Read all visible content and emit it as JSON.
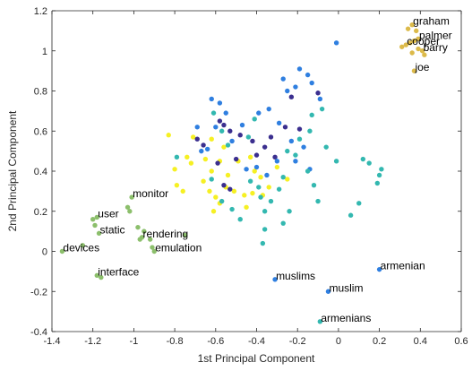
{
  "chart_data": {
    "type": "scatter",
    "title": "",
    "xlabel": "1st Principal Component",
    "ylabel": "2nd Principal Component",
    "xlim": [
      -1.4,
      0.6
    ],
    "ylim": [
      -0.4,
      1.2
    ],
    "xticks": [
      "-1.4",
      "-1.2",
      "-1",
      "-0.8",
      "-0.6",
      "-0.4",
      "-0.2",
      "0",
      "0.2",
      "0.4",
      "0.6"
    ],
    "yticks": [
      "-0.4",
      "-0.2",
      "0",
      "0.2",
      "0.4",
      "0.6",
      "0.8",
      "1",
      "1.2"
    ],
    "grid": false,
    "legend": "none",
    "colors": {
      "green": "#8cbf6c",
      "gold": "#dcba4a",
      "yellow": "#f6f023",
      "navy": "#3b2f8f",
      "blue": "#2f7fe0",
      "teal": "#33b8b0",
      "axis": "#262626"
    },
    "labeled_points": [
      {
        "x": 0.36,
        "y": 1.13,
        "color": "gold",
        "label": "graham"
      },
      {
        "x": 0.39,
        "y": 1.06,
        "color": "gold",
        "label": "palmer"
      },
      {
        "x": 0.33,
        "y": 1.03,
        "color": "gold",
        "label": "cooper"
      },
      {
        "x": 0.41,
        "y": 1.0,
        "color": "gold",
        "label": "barry"
      },
      {
        "x": 0.37,
        "y": 0.9,
        "color": "gold",
        "label": "joe"
      },
      {
        "x": -1.01,
        "y": 0.27,
        "color": "green",
        "label": "monitor"
      },
      {
        "x": -1.18,
        "y": 0.17,
        "color": "green",
        "label": "user"
      },
      {
        "x": -1.17,
        "y": 0.09,
        "color": "green",
        "label": "static"
      },
      {
        "x": -0.96,
        "y": 0.07,
        "color": "green",
        "label": "rendering"
      },
      {
        "x": -1.35,
        "y": 0.0,
        "color": "green",
        "label": "devices"
      },
      {
        "x": -0.9,
        "y": 0.0,
        "color": "green",
        "label": "emulation"
      },
      {
        "x": -1.18,
        "y": -0.12,
        "color": "green",
        "label": "interface"
      },
      {
        "x": -0.31,
        "y": -0.14,
        "color": "blue",
        "label": "muslims"
      },
      {
        "x": -0.05,
        "y": -0.2,
        "color": "blue",
        "label": "muslim"
      },
      {
        "x": 0.2,
        "y": -0.09,
        "color": "blue",
        "label": "armenian"
      },
      {
        "x": -0.09,
        "y": -0.35,
        "color": "teal",
        "label": "armenians"
      }
    ],
    "points": [
      {
        "x": 0.34,
        "y": 1.11,
        "color": "gold"
      },
      {
        "x": 0.38,
        "y": 1.1,
        "color": "gold"
      },
      {
        "x": 0.37,
        "y": 1.05,
        "color": "gold"
      },
      {
        "x": 0.31,
        "y": 1.02,
        "color": "gold"
      },
      {
        "x": 0.39,
        "y": 1.01,
        "color": "gold"
      },
      {
        "x": 0.36,
        "y": 0.99,
        "color": "gold"
      },
      {
        "x": 0.42,
        "y": 0.98,
        "color": "gold"
      },
      {
        "x": 0.35,
        "y": 1.04,
        "color": "gold"
      },
      {
        "x": -1.25,
        "y": 0.03,
        "color": "green"
      },
      {
        "x": -1.2,
        "y": 0.16,
        "color": "green"
      },
      {
        "x": -1.19,
        "y": 0.13,
        "color": "green"
      },
      {
        "x": -1.03,
        "y": 0.22,
        "color": "green"
      },
      {
        "x": -1.02,
        "y": 0.2,
        "color": "green"
      },
      {
        "x": -0.98,
        "y": 0.12,
        "color": "green"
      },
      {
        "x": -0.95,
        "y": 0.1,
        "color": "green"
      },
      {
        "x": -0.92,
        "y": 0.06,
        "color": "green"
      },
      {
        "x": -0.97,
        "y": 0.06,
        "color": "green"
      },
      {
        "x": -0.91,
        "y": 0.02,
        "color": "green"
      },
      {
        "x": -0.75,
        "y": 0.08,
        "color": "green"
      },
      {
        "x": -1.16,
        "y": -0.13,
        "color": "green"
      },
      {
        "x": -0.79,
        "y": 0.47,
        "color": "teal"
      },
      {
        "x": -0.72,
        "y": 0.44,
        "color": "yellow"
      },
      {
        "x": -0.83,
        "y": 0.58,
        "color": "yellow"
      },
      {
        "x": -0.8,
        "y": 0.41,
        "color": "yellow"
      },
      {
        "x": -0.79,
        "y": 0.33,
        "color": "yellow"
      },
      {
        "x": -0.76,
        "y": 0.3,
        "color": "yellow"
      },
      {
        "x": -0.71,
        "y": 0.57,
        "color": "yellow"
      },
      {
        "x": -0.74,
        "y": 0.47,
        "color": "yellow"
      },
      {
        "x": -0.65,
        "y": 0.46,
        "color": "yellow"
      },
      {
        "x": -0.62,
        "y": 0.4,
        "color": "yellow"
      },
      {
        "x": -0.6,
        "y": 0.27,
        "color": "yellow"
      },
      {
        "x": -0.61,
        "y": 0.2,
        "color": "yellow"
      },
      {
        "x": -0.58,
        "y": 0.24,
        "color": "yellow"
      },
      {
        "x": -0.55,
        "y": 0.32,
        "color": "yellow"
      },
      {
        "x": -0.51,
        "y": 0.3,
        "color": "yellow"
      },
      {
        "x": -0.58,
        "y": 0.45,
        "color": "yellow"
      },
      {
        "x": -0.54,
        "y": 0.38,
        "color": "yellow"
      },
      {
        "x": -0.49,
        "y": 0.45,
        "color": "yellow"
      },
      {
        "x": -0.46,
        "y": 0.28,
        "color": "yellow"
      },
      {
        "x": -0.45,
        "y": 0.22,
        "color": "yellow"
      },
      {
        "x": -0.42,
        "y": 0.29,
        "color": "yellow"
      },
      {
        "x": -0.38,
        "y": 0.37,
        "color": "yellow"
      },
      {
        "x": -0.37,
        "y": 0.28,
        "color": "yellow"
      },
      {
        "x": -0.34,
        "y": 0.32,
        "color": "yellow"
      },
      {
        "x": -0.41,
        "y": 0.4,
        "color": "yellow"
      },
      {
        "x": -0.43,
        "y": 0.47,
        "color": "yellow"
      },
      {
        "x": -0.62,
        "y": 0.56,
        "color": "yellow"
      },
      {
        "x": -0.56,
        "y": 0.52,
        "color": "yellow"
      },
      {
        "x": -0.66,
        "y": 0.35,
        "color": "yellow"
      },
      {
        "x": -0.3,
        "y": 0.42,
        "color": "yellow"
      },
      {
        "x": -0.25,
        "y": 0.36,
        "color": "yellow"
      },
      {
        "x": -0.63,
        "y": 0.3,
        "color": "yellow"
      },
      {
        "x": -0.69,
        "y": 0.56,
        "color": "navy"
      },
      {
        "x": -0.66,
        "y": 0.53,
        "color": "navy"
      },
      {
        "x": -0.58,
        "y": 0.65,
        "color": "navy"
      },
      {
        "x": -0.56,
        "y": 0.63,
        "color": "navy"
      },
      {
        "x": -0.53,
        "y": 0.6,
        "color": "navy"
      },
      {
        "x": -0.48,
        "y": 0.58,
        "color": "navy"
      },
      {
        "x": -0.5,
        "y": 0.46,
        "color": "navy"
      },
      {
        "x": -0.53,
        "y": 0.31,
        "color": "navy"
      },
      {
        "x": -0.56,
        "y": 0.33,
        "color": "navy"
      },
      {
        "x": -0.42,
        "y": 0.55,
        "color": "navy"
      },
      {
        "x": -0.4,
        "y": 0.48,
        "color": "navy"
      },
      {
        "x": -0.36,
        "y": 0.52,
        "color": "navy"
      },
      {
        "x": -0.33,
        "y": 0.57,
        "color": "navy"
      },
      {
        "x": -0.31,
        "y": 0.47,
        "color": "navy"
      },
      {
        "x": -0.1,
        "y": 0.79,
        "color": "navy"
      },
      {
        "x": -0.26,
        "y": 0.62,
        "color": "navy"
      },
      {
        "x": -0.23,
        "y": 0.77,
        "color": "navy"
      },
      {
        "x": -0.19,
        "y": 0.61,
        "color": "navy"
      },
      {
        "x": -0.59,
        "y": 0.44,
        "color": "navy"
      },
      {
        "x": -0.01,
        "y": 1.04,
        "color": "blue"
      },
      {
        "x": -0.19,
        "y": 0.91,
        "color": "blue"
      },
      {
        "x": -0.15,
        "y": 0.88,
        "color": "blue"
      },
      {
        "x": -0.27,
        "y": 0.86,
        "color": "blue"
      },
      {
        "x": -0.21,
        "y": 0.82,
        "color": "blue"
      },
      {
        "x": -0.25,
        "y": 0.8,
        "color": "blue"
      },
      {
        "x": -0.13,
        "y": 0.84,
        "color": "blue"
      },
      {
        "x": -0.09,
        "y": 0.76,
        "color": "blue"
      },
      {
        "x": -0.62,
        "y": 0.76,
        "color": "blue"
      },
      {
        "x": -0.58,
        "y": 0.74,
        "color": "blue"
      },
      {
        "x": -0.55,
        "y": 0.69,
        "color": "blue"
      },
      {
        "x": -0.6,
        "y": 0.62,
        "color": "blue"
      },
      {
        "x": -0.52,
        "y": 0.55,
        "color": "blue"
      },
      {
        "x": -0.47,
        "y": 0.63,
        "color": "blue"
      },
      {
        "x": -0.39,
        "y": 0.69,
        "color": "blue"
      },
      {
        "x": -0.34,
        "y": 0.71,
        "color": "blue"
      },
      {
        "x": -0.29,
        "y": 0.64,
        "color": "blue"
      },
      {
        "x": -0.45,
        "y": 0.41,
        "color": "blue"
      },
      {
        "x": -0.4,
        "y": 0.42,
        "color": "blue"
      },
      {
        "x": -0.35,
        "y": 0.38,
        "color": "blue"
      },
      {
        "x": -0.3,
        "y": 0.45,
        "color": "blue"
      },
      {
        "x": -0.23,
        "y": 0.55,
        "color": "blue"
      },
      {
        "x": -0.17,
        "y": 0.52,
        "color": "blue"
      },
      {
        "x": -0.21,
        "y": 0.45,
        "color": "blue"
      },
      {
        "x": -0.14,
        "y": 0.41,
        "color": "blue"
      },
      {
        "x": -0.64,
        "y": 0.51,
        "color": "blue"
      },
      {
        "x": -0.67,
        "y": 0.5,
        "color": "blue"
      },
      {
        "x": -0.69,
        "y": 0.62,
        "color": "blue"
      },
      {
        "x": -0.41,
        "y": 0.66,
        "color": "teal"
      },
      {
        "x": -0.44,
        "y": 0.57,
        "color": "teal"
      },
      {
        "x": -0.61,
        "y": 0.69,
        "color": "teal"
      },
      {
        "x": -0.57,
        "y": 0.6,
        "color": "teal"
      },
      {
        "x": -0.54,
        "y": 0.53,
        "color": "teal"
      },
      {
        "x": -0.62,
        "y": 0.36,
        "color": "teal"
      },
      {
        "x": -0.57,
        "y": 0.25,
        "color": "teal"
      },
      {
        "x": -0.52,
        "y": 0.21,
        "color": "teal"
      },
      {
        "x": -0.48,
        "y": 0.16,
        "color": "teal"
      },
      {
        "x": -0.43,
        "y": 0.35,
        "color": "teal"
      },
      {
        "x": -0.39,
        "y": 0.32,
        "color": "teal"
      },
      {
        "x": -0.36,
        "y": 0.2,
        "color": "teal"
      },
      {
        "x": -0.38,
        "y": 0.27,
        "color": "teal"
      },
      {
        "x": -0.33,
        "y": 0.25,
        "color": "teal"
      },
      {
        "x": -0.29,
        "y": 0.31,
        "color": "teal"
      },
      {
        "x": -0.27,
        "y": 0.37,
        "color": "teal"
      },
      {
        "x": -0.25,
        "y": 0.5,
        "color": "teal"
      },
      {
        "x": -0.21,
        "y": 0.48,
        "color": "teal"
      },
      {
        "x": -0.19,
        "y": 0.56,
        "color": "teal"
      },
      {
        "x": -0.14,
        "y": 0.6,
        "color": "teal"
      },
      {
        "x": -0.13,
        "y": 0.68,
        "color": "teal"
      },
      {
        "x": -0.08,
        "y": 0.71,
        "color": "teal"
      },
      {
        "x": -0.06,
        "y": 0.52,
        "color": "teal"
      },
      {
        "x": -0.01,
        "y": 0.45,
        "color": "teal"
      },
      {
        "x": 0.1,
        "y": 0.24,
        "color": "teal"
      },
      {
        "x": 0.06,
        "y": 0.18,
        "color": "teal"
      },
      {
        "x": 0.12,
        "y": 0.46,
        "color": "teal"
      },
      {
        "x": 0.15,
        "y": 0.44,
        "color": "teal"
      },
      {
        "x": 0.19,
        "y": 0.34,
        "color": "teal"
      },
      {
        "x": 0.2,
        "y": 0.38,
        "color": "teal"
      },
      {
        "x": 0.21,
        "y": 0.41,
        "color": "teal"
      },
      {
        "x": -0.12,
        "y": 0.33,
        "color": "teal"
      },
      {
        "x": -0.1,
        "y": 0.25,
        "color": "teal"
      },
      {
        "x": -0.24,
        "y": 0.2,
        "color": "teal"
      },
      {
        "x": -0.27,
        "y": 0.14,
        "color": "teal"
      },
      {
        "x": -0.36,
        "y": 0.11,
        "color": "teal"
      },
      {
        "x": -0.37,
        "y": 0.04,
        "color": "teal"
      },
      {
        "x": -0.15,
        "y": 0.4,
        "color": "teal"
      }
    ]
  }
}
